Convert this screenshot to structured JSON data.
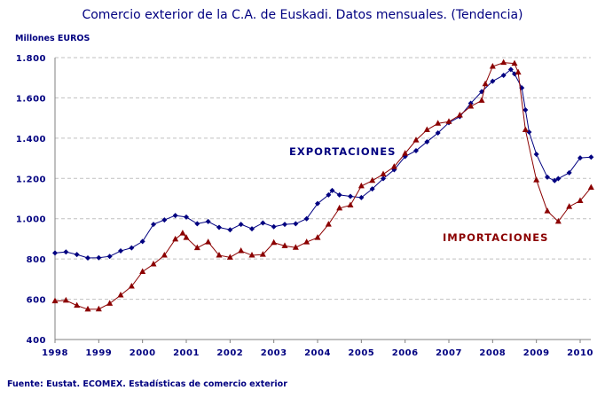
{
  "chart_data": {
    "type": "line",
    "title": "Comercio exterior de la C.A. de Euskadi. Datos mensuales. (Tendencia)",
    "ylabel": "Millones EUROS",
    "xlabel": "",
    "source": "Fuente: Eustat. ECOMEX. Estadísticas de comercio exterior",
    "ylim": [
      400,
      1800
    ],
    "yticks": [
      "400",
      "600",
      "800",
      "1.000",
      "1.200",
      "1.400",
      "1.600",
      "1.800"
    ],
    "ytick_values": [
      400,
      600,
      800,
      1000,
      1200,
      1400,
      1600,
      1800
    ],
    "xticks": [
      "1998",
      "1999",
      "2000",
      "2001",
      "2002",
      "2003",
      "2004",
      "2005",
      "2006",
      "2007",
      "2008",
      "2009",
      "2010"
    ],
    "grid": "horizontal dashed",
    "legend": "inline labels",
    "series": [
      {
        "name": "EXPORTACIONES",
        "color": "#000080",
        "marker": "diamond",
        "x": [
          "1998-01",
          "1998-04",
          "1998-07",
          "1998-10",
          "1999-01",
          "1999-04",
          "1999-07",
          "1999-10",
          "2000-01",
          "2000-04",
          "2000-07",
          "2000-10",
          "2001-01",
          "2001-04",
          "2001-07",
          "2001-10",
          "2002-01",
          "2002-04",
          "2002-07",
          "2002-10",
          "2003-01",
          "2003-04",
          "2003-07",
          "2003-10",
          "2004-01",
          "2004-04",
          "2004-05",
          "2004-07",
          "2004-10",
          "2005-01",
          "2005-04",
          "2005-07",
          "2005-10",
          "2006-01",
          "2006-04",
          "2006-07",
          "2006-10",
          "2007-01",
          "2007-04",
          "2007-07",
          "2007-10",
          "2008-01",
          "2008-04",
          "2008-06",
          "2008-07",
          "2008-09",
          "2008-10",
          "2008-11",
          "2009-01",
          "2009-04",
          "2009-06",
          "2009-07",
          "2009-10",
          "2010-01",
          "2010-04"
        ],
        "values": [
          830,
          835,
          822,
          805,
          806,
          813,
          840,
          855,
          887,
          972,
          994,
          1016,
          1008,
          975,
          986,
          957,
          945,
          972,
          950,
          979,
          960,
          972,
          975,
          1000,
          1075,
          1118,
          1140,
          1118,
          1111,
          1105,
          1148,
          1199,
          1243,
          1309,
          1338,
          1382,
          1426,
          1477,
          1507,
          1573,
          1631,
          1683,
          1712,
          1741,
          1719,
          1650,
          1540,
          1430,
          1320,
          1206,
          1189,
          1199,
          1228,
          1302,
          1306
        ]
      },
      {
        "name": "IMPORTACIONES",
        "color": "#8b0000",
        "marker": "triangle",
        "x": [
          "1998-01",
          "1998-04",
          "1998-07",
          "1998-10",
          "1999-01",
          "1999-04",
          "1999-07",
          "1999-10",
          "2000-01",
          "2000-04",
          "2000-07",
          "2000-10",
          "2000-12",
          "2001-01",
          "2001-04",
          "2001-07",
          "2001-10",
          "2002-01",
          "2002-04",
          "2002-07",
          "2002-10",
          "2003-01",
          "2003-04",
          "2003-07",
          "2003-10",
          "2004-01",
          "2004-04",
          "2004-07",
          "2004-10",
          "2005-01",
          "2005-04",
          "2005-07",
          "2005-10",
          "2006-01",
          "2006-04",
          "2006-07",
          "2006-10",
          "2007-01",
          "2007-04",
          "2007-07",
          "2007-10",
          "2007-11",
          "2008-01",
          "2008-04",
          "2008-07",
          "2008-08",
          "2008-10",
          "2009-01",
          "2009-04",
          "2009-07",
          "2009-10",
          "2010-01",
          "2010-04"
        ],
        "values": [
          591,
          594,
          569,
          550,
          551,
          579,
          620,
          664,
          737,
          774,
          818,
          898,
          928,
          906,
          855,
          884,
          818,
          808,
          840,
          818,
          822,
          881,
          865,
          857,
          884,
          906,
          972,
          1052,
          1067,
          1162,
          1189,
          1221,
          1258,
          1324,
          1390,
          1441,
          1473,
          1482,
          1514,
          1558,
          1587,
          1669,
          1756,
          1775,
          1771,
          1727,
          1441,
          1192,
          1038,
          986,
          1060,
          1089,
          1155
        ]
      }
    ]
  }
}
